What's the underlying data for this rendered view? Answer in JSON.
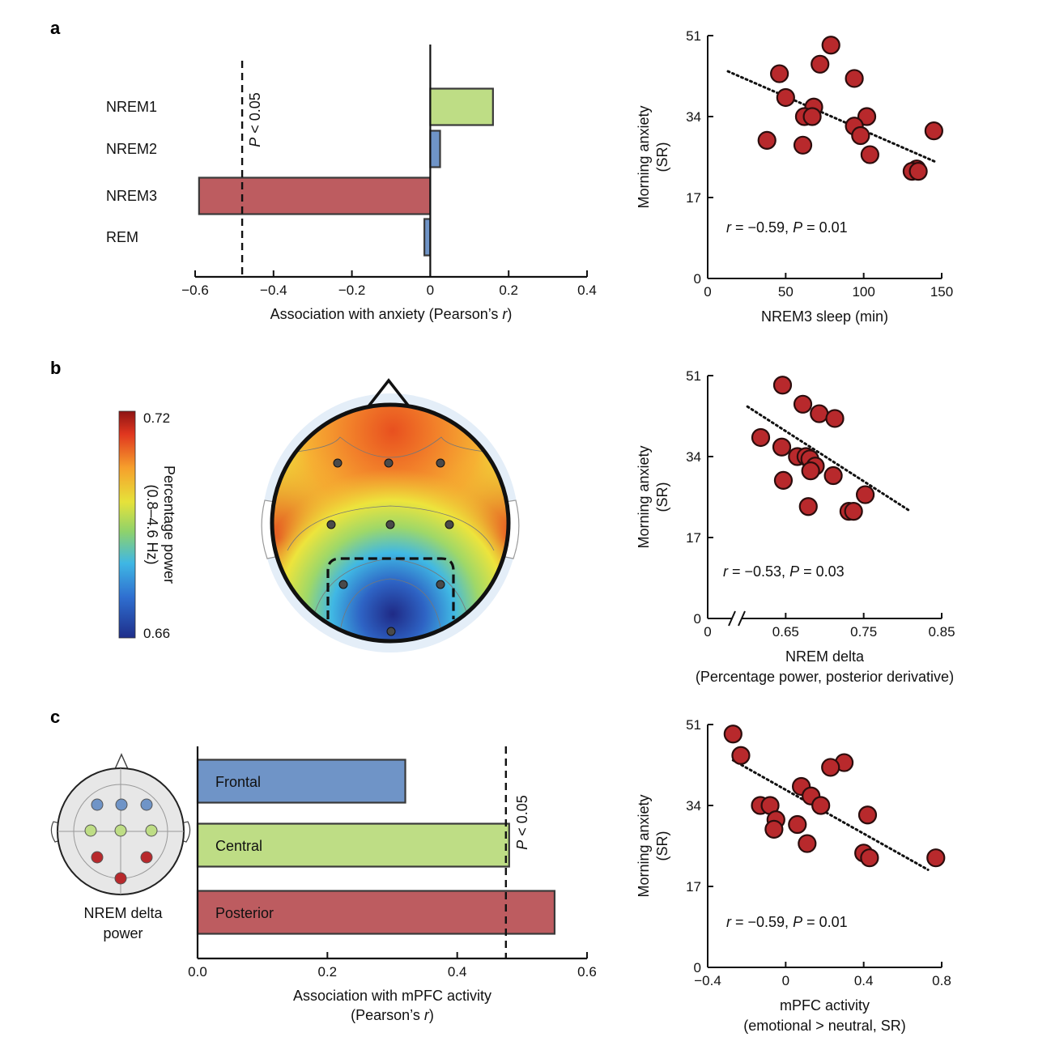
{
  "panels": {
    "a": "a",
    "b": "b",
    "c": "c"
  },
  "colors": {
    "green": "#bedd85",
    "blue": "#6f94c7",
    "red": "#bd5c60",
    "dot_fill": "#b8292c",
    "dot_stroke": "#2b0d0d",
    "electrode": "#4a4a4a"
  },
  "chart_data": [
    {
      "id": "a_bar",
      "type": "bar",
      "orientation": "horizontal",
      "categories": [
        "NREM1",
        "NREM2",
        "NREM3",
        "REM"
      ],
      "values": [
        0.16,
        0.025,
        -0.59,
        -0.015
      ],
      "bar_colors": [
        "#bedd85",
        "#6f94c7",
        "#bd5c60",
        "#6f94c7"
      ],
      "xlabel": "Association with anxiety (Pearson’s ",
      "xlabel_italic": "r",
      "xlabel_close": ")",
      "xlim": [
        -0.6,
        0.4
      ],
      "xticks": [
        -0.6,
        -0.4,
        -0.2,
        0,
        0.2,
        0.4
      ],
      "xtick_labels": [
        "−0.6",
        "−0.4",
        "−0.2",
        "0",
        "0.2",
        "0.4"
      ],
      "threshold": -0.48,
      "threshold_label_italic": "P",
      "threshold_label_rest": " < 0.05"
    },
    {
      "id": "a_scatter",
      "type": "scatter",
      "xlabel": "NREM3 sleep (min)",
      "ylabel": [
        "Morning anxiety",
        "(SR)"
      ],
      "xlim": [
        0,
        150
      ],
      "ylim": [
        0,
        51
      ],
      "xticks": [
        0,
        50,
        100,
        150
      ],
      "xtick_labels": [
        "0",
        "50",
        "100",
        "150"
      ],
      "yticks": [
        0,
        17,
        34,
        51
      ],
      "ytick_labels": [
        "0",
        "17",
        "34",
        "51"
      ],
      "points": [
        [
          79,
          49
        ],
        [
          72,
          45
        ],
        [
          46,
          43
        ],
        [
          94,
          42
        ],
        [
          50,
          38
        ],
        [
          68,
          36
        ],
        [
          62,
          34
        ],
        [
          67,
          34
        ],
        [
          102,
          34
        ],
        [
          94,
          32
        ],
        [
          98,
          30
        ],
        [
          145,
          31
        ],
        [
          38,
          29
        ],
        [
          61,
          28
        ],
        [
          104,
          26
        ],
        [
          134,
          23
        ],
        [
          131,
          22.5
        ],
        [
          135,
          22.5
        ]
      ],
      "trend": [
        [
          13,
          43.5
        ],
        [
          146,
          24.5
        ]
      ],
      "stat_r_label": "r",
      "stat_r_value": " = −0.59, ",
      "stat_p_label": "P",
      "stat_p_value": " = 0.01"
    },
    {
      "id": "b_scatter",
      "type": "scatter",
      "xlabel": "NREM delta",
      "xlabel2": "(Percentage power, posterior derivative)",
      "ylabel": [
        "Morning anxiety",
        "(SR)"
      ],
      "xlim": [
        0.55,
        0.85
      ],
      "ylim": [
        0,
        51
      ],
      "axis_break": true,
      "xticks": [
        0.55,
        0.65,
        0.75,
        0.85
      ],
      "xtick_labels": [
        "0",
        "0.65",
        "0.75",
        "0.85"
      ],
      "yticks": [
        0,
        17,
        34,
        51
      ],
      "ytick_labels": [
        "0",
        "17",
        "34",
        "51"
      ],
      "points": [
        [
          0.646,
          49
        ],
        [
          0.672,
          45
        ],
        [
          0.693,
          43
        ],
        [
          0.713,
          42
        ],
        [
          0.618,
          38
        ],
        [
          0.645,
          36
        ],
        [
          0.665,
          34
        ],
        [
          0.676,
          34
        ],
        [
          0.681,
          33.5
        ],
        [
          0.688,
          32
        ],
        [
          0.682,
          31
        ],
        [
          0.711,
          30
        ],
        [
          0.647,
          29
        ],
        [
          0.752,
          26
        ],
        [
          0.679,
          23.5
        ],
        [
          0.731,
          22.5
        ],
        [
          0.737,
          22.5
        ]
      ],
      "trend": [
        [
          0.601,
          44.5
        ],
        [
          0.81,
          22.5
        ]
      ],
      "stat_r_label": "r",
      "stat_r_value": " = −0.53, ",
      "stat_p_label": "P",
      "stat_p_value": " = 0.03"
    },
    {
      "id": "c_bar",
      "type": "bar",
      "orientation": "horizontal",
      "categories": [
        "Frontal",
        "Central",
        "Posterior"
      ],
      "values": [
        0.32,
        0.48,
        0.55
      ],
      "bar_colors": [
        "#6f94c7",
        "#bedd85",
        "#bd5c60"
      ],
      "xlabel": "Association with mPFC activity",
      "xlabel2_open": "(Pearson’s ",
      "xlabel2_italic": "r",
      "xlabel2_close": ")",
      "xlim": [
        0,
        0.6
      ],
      "xticks": [
        0,
        0.2,
        0.4,
        0.6
      ],
      "xtick_labels": [
        "0.0",
        "0.2",
        "0.4",
        "0.6"
      ],
      "threshold": 0.475,
      "threshold_label_italic": "P",
      "threshold_label_rest": " < 0.05"
    },
    {
      "id": "c_scatter",
      "type": "scatter",
      "xlabel": "mPFC activity",
      "xlabel2": "(emotional > neutral, SR)",
      "ylabel": [
        "Morning anxiety",
        "(SR)"
      ],
      "xlim": [
        -0.4,
        0.8
      ],
      "ylim": [
        0,
        51
      ],
      "xticks": [
        -0.4,
        0,
        0.4,
        0.8
      ],
      "xtick_labels": [
        "−0.4",
        "0",
        "0.4",
        "0.8"
      ],
      "yticks": [
        0,
        17,
        34,
        51
      ],
      "ytick_labels": [
        "0",
        "17",
        "34",
        "51"
      ],
      "points": [
        [
          -0.27,
          49
        ],
        [
          -0.23,
          44.5
        ],
        [
          0.3,
          43
        ],
        [
          0.23,
          42
        ],
        [
          0.08,
          38
        ],
        [
          0.13,
          36
        ],
        [
          -0.13,
          34
        ],
        [
          -0.08,
          34
        ],
        [
          0.18,
          34
        ],
        [
          0.42,
          32
        ],
        [
          -0.05,
          31
        ],
        [
          0.06,
          30
        ],
        [
          -0.06,
          29
        ],
        [
          0.11,
          26
        ],
        [
          0.4,
          24
        ],
        [
          0.43,
          23
        ],
        [
          0.77,
          23
        ]
      ],
      "trend": [
        [
          -0.27,
          43.5
        ],
        [
          0.73,
          20.5
        ]
      ],
      "stat_r_label": "r",
      "stat_r_value": " = −0.59, ",
      "stat_p_label": "P",
      "stat_p_value": " = 0.01"
    }
  ],
  "topomap": {
    "colorbar_max": "0.72",
    "colorbar_min": "0.66",
    "colorbar_label": "Percentage power",
    "colorbar_label2": "(0.8–4.6 Hz)"
  },
  "electrode_legend": {
    "label1": "NREM delta",
    "label2": "power"
  }
}
